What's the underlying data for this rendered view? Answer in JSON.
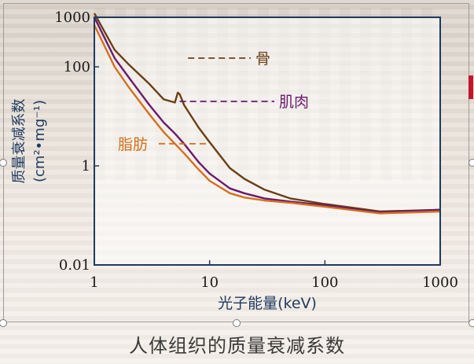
{
  "chart_data": {
    "type": "line",
    "xscale": "log",
    "yscale": "log",
    "xlim": [
      1,
      1000
    ],
    "ylim": [
      0.01,
      1000
    ],
    "xticks": [
      "1",
      "10",
      "100",
      "1000"
    ],
    "yticks": [
      "0.01",
      "1",
      "100",
      "1000"
    ],
    "xlabel": "光子能量(keV)",
    "ylabel": [
      "质量衰减系数",
      "(cm²•mg⁻¹)"
    ],
    "grid": false,
    "series": [
      {
        "name": "骨",
        "color": "#6b3e14",
        "label_x_value": 25,
        "label_y_value": 150,
        "leader_from": [
          6.5,
          150
        ],
        "points": [
          [
            1,
            1200
          ],
          [
            1.5,
            220
          ],
          [
            2,
            110
          ],
          [
            3,
            45
          ],
          [
            4,
            22
          ],
          [
            5,
            19
          ],
          [
            5.3,
            30
          ],
          [
            5.5,
            28
          ],
          [
            6,
            17
          ],
          [
            8,
            6
          ],
          [
            10,
            3
          ],
          [
            15,
            0.9
          ],
          [
            20,
            0.55
          ],
          [
            30,
            0.33
          ],
          [
            50,
            0.22
          ],
          [
            100,
            0.17
          ],
          [
            300,
            0.12
          ],
          [
            1000,
            0.13
          ]
        ]
      },
      {
        "name": "肌肉",
        "color": "#6a1a6e",
        "label_x_value": 40,
        "label_y_value": 20,
        "leader_from": [
          5.5,
          20
        ],
        "points": [
          [
            1,
            1000
          ],
          [
            1.5,
            150
          ],
          [
            2,
            60
          ],
          [
            3,
            17
          ],
          [
            4,
            7.5
          ],
          [
            5,
            4.5
          ],
          [
            6,
            2.8
          ],
          [
            8,
            1.2
          ],
          [
            10,
            0.7
          ],
          [
            15,
            0.35
          ],
          [
            20,
            0.28
          ],
          [
            30,
            0.22
          ],
          [
            50,
            0.19
          ],
          [
            100,
            0.16
          ],
          [
            300,
            0.115
          ],
          [
            1000,
            0.13
          ]
        ]
      },
      {
        "name": "脂肪",
        "color": "#d4701c",
        "label_x_value": 1.6,
        "label_y_value": 2.8,
        "leader_from": [
          9.5,
          2.8
        ],
        "points": [
          [
            1,
            700
          ],
          [
            1.5,
            100
          ],
          [
            2,
            38
          ],
          [
            3,
            11
          ],
          [
            4,
            4.8
          ],
          [
            5,
            2.8
          ],
          [
            6,
            1.8
          ],
          [
            8,
            0.85
          ],
          [
            10,
            0.5
          ],
          [
            15,
            0.28
          ],
          [
            20,
            0.23
          ],
          [
            30,
            0.2
          ],
          [
            50,
            0.18
          ],
          [
            100,
            0.15
          ],
          [
            300,
            0.11
          ],
          [
            1000,
            0.12
          ]
        ]
      }
    ]
  },
  "caption": "人体组织的质量衰减系数"
}
